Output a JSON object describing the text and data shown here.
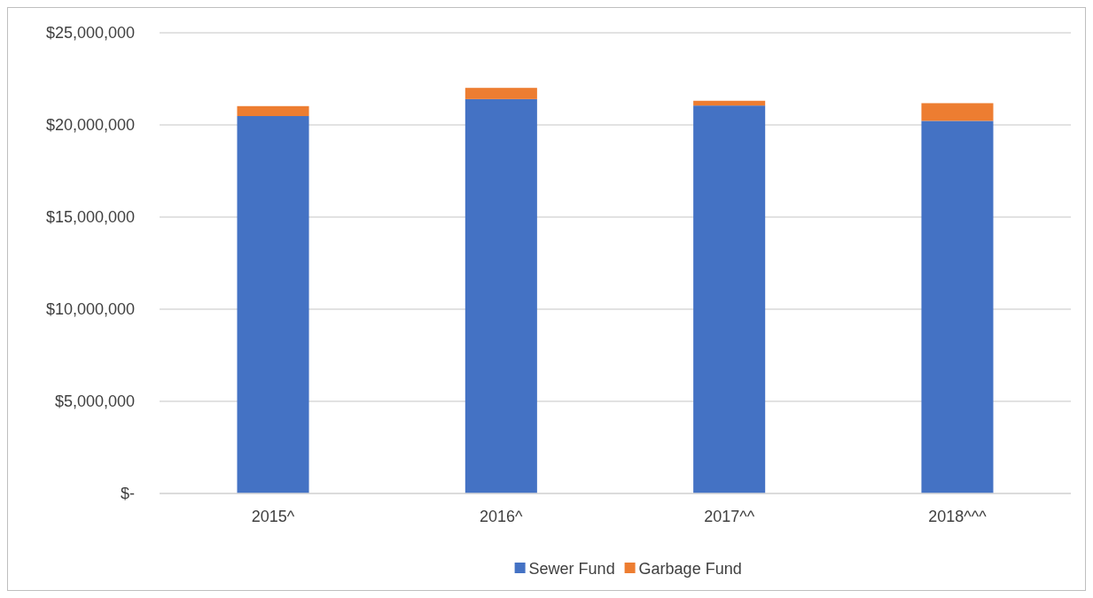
{
  "chart_data": {
    "type": "bar",
    "stacked": true,
    "categories": [
      "2015^",
      "2016^",
      "2017^^",
      "2018^^^"
    ],
    "series": [
      {
        "name": "Sewer Fund",
        "color": "#4472c4",
        "values": [
          20480000,
          21400000,
          21050000,
          20220000
        ]
      },
      {
        "name": "Garbage Fund",
        "color": "#ed7d31",
        "values": [
          540000,
          610000,
          260000,
          960000
        ]
      }
    ],
    "ylim": [
      0,
      25000000
    ],
    "yticks": [
      {
        "value": 0,
        "label": "$-"
      },
      {
        "value": 5000000,
        "label": "$5,000,000"
      },
      {
        "value": 10000000,
        "label": "$10,000,000"
      },
      {
        "value": 15000000,
        "label": "$15,000,000"
      },
      {
        "value": 20000000,
        "label": "$20,000,000"
      },
      {
        "value": 25000000,
        "label": "$25,000,000"
      }
    ],
    "grid": "y",
    "legend": "bottom"
  }
}
